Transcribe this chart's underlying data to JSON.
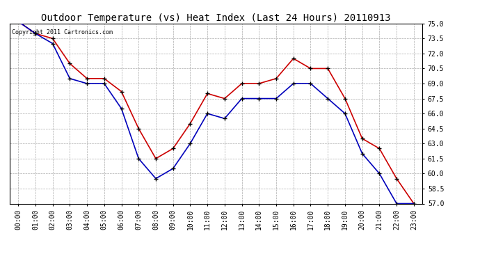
{
  "title": "Outdoor Temperature (vs) Heat Index (Last 24 Hours) 20110913",
  "copyright_text": "Copyright 2011 Cartronics.com",
  "x_labels": [
    "00:00",
    "01:00",
    "02:00",
    "03:00",
    "04:00",
    "05:00",
    "06:00",
    "07:00",
    "08:00",
    "09:00",
    "10:00",
    "11:00",
    "12:00",
    "13:00",
    "14:00",
    "15:00",
    "16:00",
    "17:00",
    "18:00",
    "19:00",
    "20:00",
    "21:00",
    "22:00",
    "23:00"
  ],
  "temp_red": [
    75.2,
    74.0,
    73.5,
    71.0,
    69.5,
    69.5,
    68.2,
    64.5,
    61.5,
    62.5,
    65.0,
    68.0,
    67.5,
    69.0,
    69.0,
    69.5,
    71.5,
    70.5,
    70.5,
    67.5,
    63.5,
    62.5,
    59.5,
    57.0
  ],
  "heat_blue": [
    75.2,
    74.0,
    73.0,
    69.5,
    69.0,
    69.0,
    66.5,
    61.5,
    59.5,
    60.5,
    63.0,
    66.0,
    65.5,
    67.5,
    67.5,
    67.5,
    69.0,
    69.0,
    67.5,
    66.0,
    62.0,
    60.0,
    57.0,
    57.0
  ],
  "ylim_min": 57.0,
  "ylim_max": 75.0,
  "yticks": [
    57.0,
    58.5,
    60.0,
    61.5,
    63.0,
    64.5,
    66.0,
    67.5,
    69.0,
    70.5,
    72.0,
    73.5,
    75.0
  ],
  "red_color": "#cc0000",
  "blue_color": "#0000bb",
  "bg_color": "#ffffff",
  "plot_bg_color": "#ffffff",
  "grid_color": "#aaaaaa",
  "marker": "+",
  "marker_color": "#000000",
  "marker_size": 5,
  "line_width": 1.2,
  "title_fontsize": 10,
  "tick_fontsize": 7,
  "copyright_fontsize": 6
}
